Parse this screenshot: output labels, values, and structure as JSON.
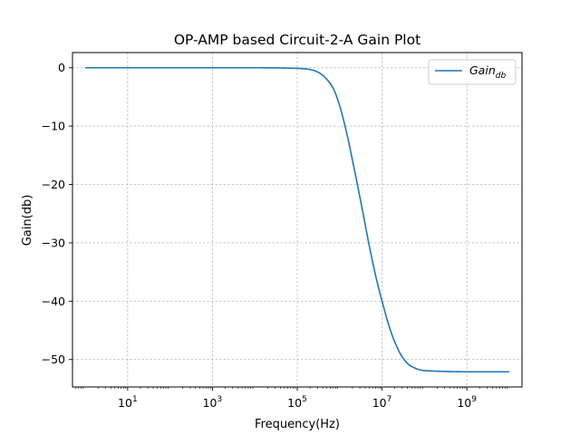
{
  "chart_data": {
    "type": "line",
    "title": "OP-AMP based Circuit-2-A Gain Plot",
    "xlabel": "Frequency(Hz)",
    "ylabel": "Gain(db)",
    "x_scale": "log",
    "xlim": [
      0.5,
      20000000000
    ],
    "ylim": [
      -54.7,
      2.6
    ],
    "grid": true,
    "grid_style": "dashed",
    "legend_position": "top-right",
    "x_ticks": [
      {
        "base": "10",
        "exp": "1",
        "value": 10
      },
      {
        "base": "10",
        "exp": "3",
        "value": 1000
      },
      {
        "base": "10",
        "exp": "5",
        "value": 100000
      },
      {
        "base": "10",
        "exp": "7",
        "value": 10000000
      },
      {
        "base": "10",
        "exp": "9",
        "value": 1000000000
      }
    ],
    "y_ticks": [
      {
        "label": "0",
        "value": 0
      },
      {
        "label": "−10",
        "value": -10
      },
      {
        "label": "−20",
        "value": -20
      },
      {
        "label": "−30",
        "value": -30
      },
      {
        "label": "−40",
        "value": -40
      },
      {
        "label": "−50",
        "value": -50
      }
    ],
    "series": [
      {
        "name_base": "Gain",
        "name_sub": "db",
        "color": "#1f77b4",
        "x": [
          1,
          10,
          100,
          1000,
          10000,
          100000,
          200000,
          316228,
          500000,
          700000,
          1000000,
          1500000,
          2000000,
          3162278,
          5000000,
          7000000,
          10000000,
          15000000,
          20000000,
          31622777,
          50000000,
          100000000,
          1000000000,
          10000000000
        ],
        "y": [
          0,
          0,
          0,
          0,
          0,
          -0.1,
          -0.3,
          -0.8,
          -2.0,
          -3.5,
          -6.5,
          -11.5,
          -15.8,
          -23.0,
          -30.5,
          -35.5,
          -40.0,
          -44.5,
          -47.0,
          -49.8,
          -51.2,
          -51.9,
          -52.1,
          -52.1
        ]
      }
    ]
  }
}
